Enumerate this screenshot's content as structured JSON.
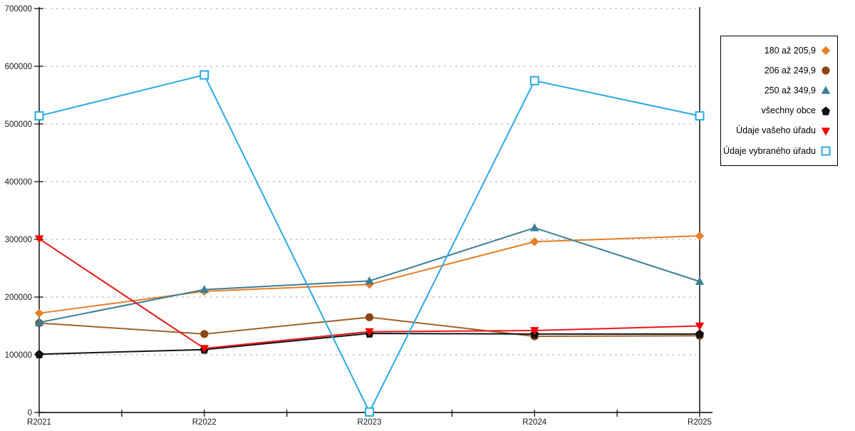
{
  "chart_data": {
    "type": "line",
    "title": "",
    "xlabel": "",
    "ylabel": "",
    "categories": [
      "R2021",
      "R2022",
      "R2023",
      "R2024",
      "R2025"
    ],
    "series": [
      {
        "name": "180 až 205,9",
        "marker": "diamond",
        "color": "#E87E26",
        "marker_color": "#E87E26",
        "values": [
          172000,
          210000,
          222000,
          296000,
          306000
        ]
      },
      {
        "name": "206 až 249,9",
        "marker": "circle",
        "color": "#A0642E",
        "marker_color": "#8B4513",
        "values": [
          155000,
          136000,
          165000,
          132000,
          133000
        ]
      },
      {
        "name": "250 až 349,9",
        "marker": "triangle-up",
        "color": "#3C7E96",
        "marker_color": "#3C7E96",
        "values": [
          156000,
          213000,
          228000,
          320000,
          227000
        ]
      },
      {
        "name": "všechny obce",
        "marker": "pentagon",
        "color": "#141414",
        "marker_color": "#111111",
        "values": [
          101000,
          109000,
          137000,
          136000,
          136000
        ]
      },
      {
        "name": "Údaje vašeho úřadu",
        "marker": "triangle-down",
        "color": "#E8191C",
        "marker_color": "#F40000",
        "values": [
          301000,
          111000,
          140000,
          142000,
          150000
        ]
      },
      {
        "name": "Údaje vybraného úřadu",
        "marker": "square-open",
        "color": "#29ABE2",
        "marker_color": "#29ABE2",
        "values": [
          514000,
          585000,
          1000,
          575000,
          514000
        ]
      }
    ],
    "ylim": [
      0,
      700000
    ],
    "ytick_step": 100000,
    "ytick_labels": [
      "0",
      "100000",
      "200000",
      "300000",
      "400000",
      "500000",
      "600000",
      "700000"
    ],
    "grid": "horizontal-dotted",
    "minor_x_ticks": true,
    "legend_position": "right"
  },
  "colors": {
    "background": "#ffffff",
    "axis": "#000000",
    "grid": "#bdbdbd",
    "label": "#1a1a1a",
    "legend_border": "#000000"
  }
}
